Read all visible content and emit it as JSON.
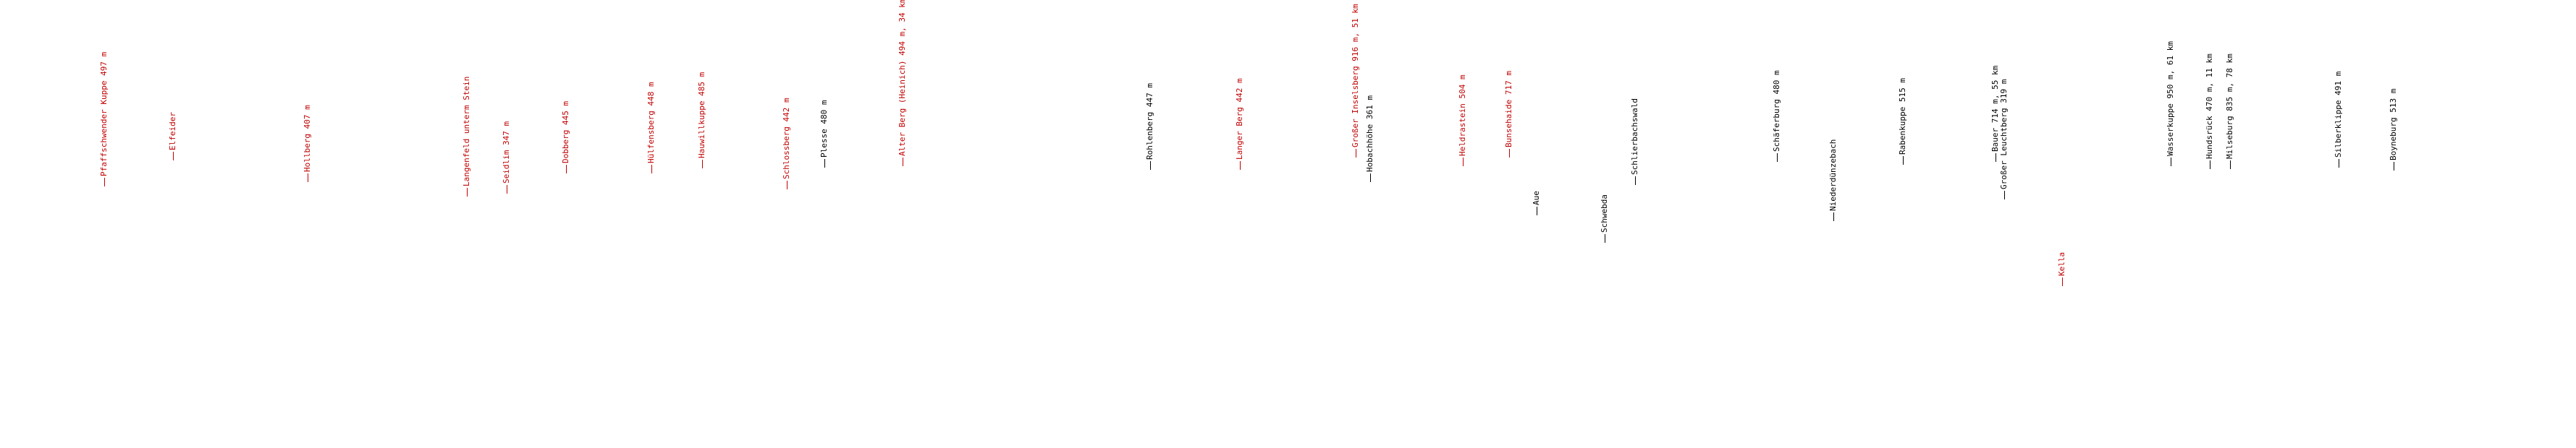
{
  "colors": {
    "red": "#c00000",
    "black": "#000000",
    "background": "#ffffff"
  },
  "labels": [
    {
      "text": "Pfaffschwender Kuppe 497 m",
      "color": "red"
    },
    {
      "text": "Elfeider",
      "color": "red"
    },
    {
      "text": "Hollberg 407 m",
      "color": "red"
    },
    {
      "text": "Langenfeld unterm Stein",
      "color": "red"
    },
    {
      "text": "Seidlim 347 m",
      "color": "red"
    },
    {
      "text": "Dobberg 445 m",
      "color": "red"
    },
    {
      "text": "Hülfensberg 448 m",
      "color": "red"
    },
    {
      "text": "Hauwillkuppe 485 m",
      "color": "red"
    },
    {
      "text": "Schlossberg 442 m",
      "color": "red"
    },
    {
      "text": "Plesse 480 m",
      "color": "black"
    },
    {
      "text": "Alter Berg (Heinich) 494 m, 34 km",
      "color": "red"
    },
    {
      "text": "Rohlenberg 447 m",
      "color": "black"
    },
    {
      "text": "Langer Berg 442 m",
      "color": "red"
    },
    {
      "text": "Großer Inselsberg 916 m, 51 km",
      "color": "red"
    },
    {
      "text": "Hobachhöhe 361 m",
      "color": "black"
    },
    {
      "text": "Heldrastein 504 m",
      "color": "red"
    },
    {
      "text": "Bunsehaide 717 m",
      "color": "red"
    },
    {
      "text": "Aue",
      "color": "black"
    },
    {
      "text": "Schwebda",
      "color": "black"
    },
    {
      "text": "Schlierbachswald",
      "color": "black"
    },
    {
      "text": "Schäferburg 480 m",
      "color": "black"
    },
    {
      "text": "Niederdünzebach",
      "color": "black"
    },
    {
      "text": "Rabenkuppe 515 m",
      "color": "black"
    },
    {
      "text": "Bauer 714 m, 55 km",
      "color": "black"
    },
    {
      "text": "Großer Leuchtberg 319 m",
      "color": "black"
    },
    {
      "text": "Kella",
      "color": "red"
    },
    {
      "text": "Wasserkuppe 950 m, 61 km",
      "color": "black"
    },
    {
      "text": "Hundsrück 470 m, 11 km",
      "color": "black"
    },
    {
      "text": "Milseburg 835 m, 78 km",
      "color": "black"
    },
    {
      "text": "Silberklippe 491 m",
      "color": "black"
    },
    {
      "text": "Boyneburg 513 m",
      "color": "black"
    }
  ]
}
